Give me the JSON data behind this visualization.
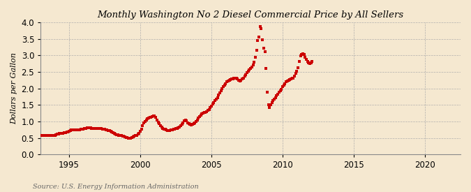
{
  "title": "Monthly Washington No 2 Diesel Commercial Price by All Sellers",
  "ylabel": "Dollars per Gallon",
  "source": "Source: U.S. Energy Information Administration",
  "background_color": "#f5e8d0",
  "plot_bg_color": "#f5e8d0",
  "dot_color": "#cc0000",
  "dot_size": 3.5,
  "xlim": [
    1993.0,
    2022.5
  ],
  "ylim": [
    0.0,
    4.0
  ],
  "xticks": [
    1995,
    2000,
    2005,
    2010,
    2015,
    2020
  ],
  "yticks": [
    0.0,
    0.5,
    1.0,
    1.5,
    2.0,
    2.5,
    3.0,
    3.5,
    4.0
  ],
  "data": [
    [
      1993.08,
      0.57
    ],
    [
      1993.17,
      0.57
    ],
    [
      1993.25,
      0.57
    ],
    [
      1993.33,
      0.57
    ],
    [
      1993.42,
      0.57
    ],
    [
      1993.5,
      0.57
    ],
    [
      1993.58,
      0.57
    ],
    [
      1993.67,
      0.58
    ],
    [
      1993.75,
      0.58
    ],
    [
      1993.83,
      0.58
    ],
    [
      1993.92,
      0.58
    ],
    [
      1994.0,
      0.59
    ],
    [
      1994.08,
      0.6
    ],
    [
      1994.17,
      0.62
    ],
    [
      1994.25,
      0.63
    ],
    [
      1994.33,
      0.64
    ],
    [
      1994.42,
      0.65
    ],
    [
      1994.5,
      0.65
    ],
    [
      1994.58,
      0.65
    ],
    [
      1994.67,
      0.66
    ],
    [
      1994.75,
      0.67
    ],
    [
      1994.83,
      0.68
    ],
    [
      1994.92,
      0.69
    ],
    [
      1995.0,
      0.7
    ],
    [
      1995.08,
      0.72
    ],
    [
      1995.17,
      0.74
    ],
    [
      1995.25,
      0.75
    ],
    [
      1995.33,
      0.75
    ],
    [
      1995.42,
      0.75
    ],
    [
      1995.5,
      0.74
    ],
    [
      1995.58,
      0.74
    ],
    [
      1995.67,
      0.74
    ],
    [
      1995.75,
      0.75
    ],
    [
      1995.83,
      0.76
    ],
    [
      1995.92,
      0.77
    ],
    [
      1996.0,
      0.78
    ],
    [
      1996.08,
      0.79
    ],
    [
      1996.17,
      0.8
    ],
    [
      1996.25,
      0.81
    ],
    [
      1996.33,
      0.82
    ],
    [
      1996.42,
      0.82
    ],
    [
      1996.5,
      0.81
    ],
    [
      1996.58,
      0.8
    ],
    [
      1996.67,
      0.79
    ],
    [
      1996.75,
      0.79
    ],
    [
      1996.83,
      0.79
    ],
    [
      1996.92,
      0.79
    ],
    [
      1997.0,
      0.8
    ],
    [
      1997.08,
      0.8
    ],
    [
      1997.17,
      0.8
    ],
    [
      1997.25,
      0.79
    ],
    [
      1997.33,
      0.78
    ],
    [
      1997.42,
      0.77
    ],
    [
      1997.5,
      0.76
    ],
    [
      1997.58,
      0.75
    ],
    [
      1997.67,
      0.74
    ],
    [
      1997.75,
      0.73
    ],
    [
      1997.83,
      0.72
    ],
    [
      1997.92,
      0.7
    ],
    [
      1998.0,
      0.68
    ],
    [
      1998.08,
      0.66
    ],
    [
      1998.17,
      0.64
    ],
    [
      1998.25,
      0.62
    ],
    [
      1998.33,
      0.61
    ],
    [
      1998.42,
      0.6
    ],
    [
      1998.5,
      0.59
    ],
    [
      1998.58,
      0.58
    ],
    [
      1998.67,
      0.57
    ],
    [
      1998.75,
      0.56
    ],
    [
      1998.83,
      0.55
    ],
    [
      1998.92,
      0.53
    ],
    [
      1999.0,
      0.52
    ],
    [
      1999.08,
      0.51
    ],
    [
      1999.17,
      0.5
    ],
    [
      1999.25,
      0.5
    ],
    [
      1999.33,
      0.5
    ],
    [
      1999.42,
      0.51
    ],
    [
      1999.5,
      0.53
    ],
    [
      1999.58,
      0.55
    ],
    [
      1999.67,
      0.57
    ],
    [
      1999.75,
      0.59
    ],
    [
      1999.83,
      0.62
    ],
    [
      1999.92,
      0.65
    ],
    [
      2000.0,
      0.7
    ],
    [
      2000.08,
      0.78
    ],
    [
      2000.17,
      0.88
    ],
    [
      2000.25,
      0.95
    ],
    [
      2000.33,
      1.0
    ],
    [
      2000.42,
      1.05
    ],
    [
      2000.5,
      1.08
    ],
    [
      2000.58,
      1.1
    ],
    [
      2000.67,
      1.12
    ],
    [
      2000.75,
      1.13
    ],
    [
      2000.83,
      1.15
    ],
    [
      2000.92,
      1.17
    ],
    [
      2001.0,
      1.18
    ],
    [
      2001.08,
      1.13
    ],
    [
      2001.17,
      1.05
    ],
    [
      2001.25,
      0.98
    ],
    [
      2001.33,
      0.93
    ],
    [
      2001.42,
      0.88
    ],
    [
      2001.5,
      0.84
    ],
    [
      2001.58,
      0.8
    ],
    [
      2001.67,
      0.78
    ],
    [
      2001.75,
      0.76
    ],
    [
      2001.83,
      0.75
    ],
    [
      2001.92,
      0.73
    ],
    [
      2002.0,
      0.72
    ],
    [
      2002.08,
      0.73
    ],
    [
      2002.17,
      0.74
    ],
    [
      2002.25,
      0.75
    ],
    [
      2002.33,
      0.76
    ],
    [
      2002.42,
      0.77
    ],
    [
      2002.5,
      0.79
    ],
    [
      2002.58,
      0.8
    ],
    [
      2002.67,
      0.82
    ],
    [
      2002.75,
      0.84
    ],
    [
      2002.83,
      0.87
    ],
    [
      2002.92,
      0.91
    ],
    [
      2003.0,
      0.97
    ],
    [
      2003.08,
      1.02
    ],
    [
      2003.17,
      1.05
    ],
    [
      2003.25,
      1.02
    ],
    [
      2003.33,
      0.97
    ],
    [
      2003.42,
      0.93
    ],
    [
      2003.5,
      0.91
    ],
    [
      2003.58,
      0.9
    ],
    [
      2003.67,
      0.91
    ],
    [
      2003.75,
      0.93
    ],
    [
      2003.83,
      0.96
    ],
    [
      2003.92,
      1.0
    ],
    [
      2004.0,
      1.05
    ],
    [
      2004.08,
      1.1
    ],
    [
      2004.17,
      1.16
    ],
    [
      2004.25,
      1.2
    ],
    [
      2004.33,
      1.23
    ],
    [
      2004.42,
      1.25
    ],
    [
      2004.5,
      1.27
    ],
    [
      2004.58,
      1.28
    ],
    [
      2004.67,
      1.3
    ],
    [
      2004.75,
      1.33
    ],
    [
      2004.83,
      1.37
    ],
    [
      2004.92,
      1.42
    ],
    [
      2005.0,
      1.47
    ],
    [
      2005.08,
      1.53
    ],
    [
      2005.17,
      1.58
    ],
    [
      2005.25,
      1.63
    ],
    [
      2005.33,
      1.68
    ],
    [
      2005.42,
      1.73
    ],
    [
      2005.5,
      1.8
    ],
    [
      2005.58,
      1.87
    ],
    [
      2005.67,
      1.93
    ],
    [
      2005.75,
      1.99
    ],
    [
      2005.83,
      2.05
    ],
    [
      2005.92,
      2.1
    ],
    [
      2006.0,
      2.15
    ],
    [
      2006.08,
      2.2
    ],
    [
      2006.17,
      2.23
    ],
    [
      2006.25,
      2.25
    ],
    [
      2006.33,
      2.27
    ],
    [
      2006.42,
      2.28
    ],
    [
      2006.5,
      2.29
    ],
    [
      2006.58,
      2.3
    ],
    [
      2006.67,
      2.32
    ],
    [
      2006.75,
      2.3
    ],
    [
      2006.83,
      2.28
    ],
    [
      2006.92,
      2.25
    ],
    [
      2007.0,
      2.22
    ],
    [
      2007.08,
      2.25
    ],
    [
      2007.17,
      2.28
    ],
    [
      2007.25,
      2.32
    ],
    [
      2007.33,
      2.37
    ],
    [
      2007.42,
      2.42
    ],
    [
      2007.5,
      2.47
    ],
    [
      2007.58,
      2.52
    ],
    [
      2007.67,
      2.56
    ],
    [
      2007.75,
      2.6
    ],
    [
      2007.83,
      2.65
    ],
    [
      2007.92,
      2.72
    ],
    [
      2008.0,
      2.8
    ],
    [
      2008.08,
      2.95
    ],
    [
      2008.17,
      3.15
    ],
    [
      2008.25,
      3.45
    ],
    [
      2008.33,
      3.55
    ],
    [
      2008.42,
      3.88
    ],
    [
      2008.5,
      3.8
    ],
    [
      2008.58,
      3.48
    ],
    [
      2008.67,
      3.22
    ],
    [
      2008.75,
      3.12
    ],
    [
      2008.83,
      2.6
    ],
    [
      2008.92,
      1.88
    ],
    [
      2009.0,
      1.5
    ],
    [
      2009.08,
      1.42
    ],
    [
      2009.17,
      1.5
    ],
    [
      2009.25,
      1.57
    ],
    [
      2009.33,
      1.63
    ],
    [
      2009.42,
      1.68
    ],
    [
      2009.5,
      1.73
    ],
    [
      2009.58,
      1.78
    ],
    [
      2009.67,
      1.83
    ],
    [
      2009.75,
      1.88
    ],
    [
      2009.83,
      1.93
    ],
    [
      2009.92,
      1.98
    ],
    [
      2010.0,
      2.05
    ],
    [
      2010.08,
      2.1
    ],
    [
      2010.17,
      2.15
    ],
    [
      2010.25,
      2.2
    ],
    [
      2010.33,
      2.22
    ],
    [
      2010.42,
      2.24
    ],
    [
      2010.5,
      2.26
    ],
    [
      2010.58,
      2.28
    ],
    [
      2010.67,
      2.3
    ],
    [
      2010.75,
      2.32
    ],
    [
      2010.83,
      2.38
    ],
    [
      2010.92,
      2.45
    ],
    [
      2011.0,
      2.52
    ],
    [
      2011.08,
      2.62
    ],
    [
      2011.17,
      2.82
    ],
    [
      2011.25,
      2.98
    ],
    [
      2011.33,
      3.02
    ],
    [
      2011.42,
      3.05
    ],
    [
      2011.5,
      3.02
    ],
    [
      2011.58,
      2.95
    ],
    [
      2011.67,
      2.88
    ],
    [
      2011.75,
      2.82
    ],
    [
      2011.83,
      2.78
    ],
    [
      2011.92,
      2.75
    ],
    [
      2012.0,
      2.78
    ],
    [
      2012.08,
      2.82
    ]
  ]
}
